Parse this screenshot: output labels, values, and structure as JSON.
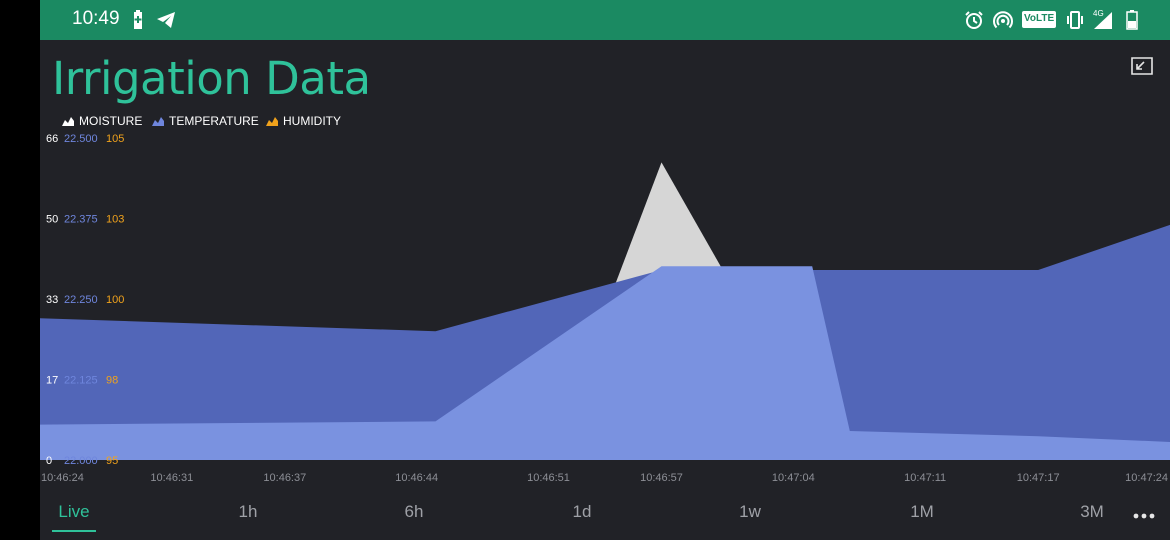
{
  "status_bar": {
    "time": "10:49",
    "volte_label": "VoLTE",
    "network_label": "4G"
  },
  "app": {
    "title": "Irrigation Data"
  },
  "legend": [
    {
      "name": "MOISTURE",
      "color": "#ffffff"
    },
    {
      "name": "TEMPERATURE",
      "color": "#6f86dd"
    },
    {
      "name": "HUMIDITY",
      "color": "#f0a21c"
    }
  ],
  "range_tabs": [
    {
      "label": "Live",
      "active": true
    },
    {
      "label": "1h",
      "active": false
    },
    {
      "label": "6h",
      "active": false
    },
    {
      "label": "1d",
      "active": false
    },
    {
      "label": "1w",
      "active": false
    },
    {
      "label": "1M",
      "active": false
    },
    {
      "label": "3M",
      "active": false
    }
  ],
  "chart_data": {
    "type": "area",
    "x": [
      "10:46:24",
      "10:46:31",
      "10:46:37",
      "10:46:44",
      "10:46:51",
      "10:46:57",
      "10:47:04",
      "10:47:11",
      "10:47:17",
      "10:47:24"
    ],
    "x_ticks": [
      "10:46:24",
      "10:46:31",
      "10:46:37",
      "10:46:44",
      "10:46:51",
      "10:46:57",
      "10:47:04",
      "10:47:11",
      "10:47:17",
      "10:47:24"
    ],
    "axes": [
      {
        "name": "MOISTURE",
        "color": "#ffffff",
        "ticks": [
          "66",
          "50",
          "33",
          "17",
          "0"
        ],
        "range": [
          0,
          66
        ]
      },
      {
        "name": "TEMPERATURE",
        "color": "#6f86dd",
        "ticks": [
          "22.500",
          "22.375",
          "22.250",
          "22.125",
          "22.000"
        ],
        "range": [
          22.0,
          22.5
        ]
      },
      {
        "name": "HUMIDITY",
        "color": "#f0a21c",
        "ticks": [
          "105",
          "103",
          "100",
          "98",
          "95"
        ],
        "range": [
          95,
          105
        ]
      }
    ],
    "series": [
      {
        "name": "MOISTURE",
        "color": "#d6d6d6",
        "points": [
          [
            "10:46:51",
            0
          ],
          [
            "10:46:57",
            61
          ],
          [
            "10:47:06",
            0
          ]
        ]
      },
      {
        "name": "HUMIDITY",
        "color": "#5266b8",
        "points": [
          [
            "10:46:24",
            99.4
          ],
          [
            "10:46:45",
            99.0
          ],
          [
            "10:46:57",
            100.9
          ],
          [
            "10:47:17",
            100.9
          ],
          [
            "10:47:24",
            102.3
          ]
        ]
      },
      {
        "name": "TEMPERATURE",
        "color": "#7a92e0",
        "points": [
          [
            "10:46:24",
            22.055
          ],
          [
            "10:46:45",
            22.06
          ],
          [
            "10:46:57",
            22.301
          ],
          [
            "10:47:05",
            22.301
          ],
          [
            "10:47:07",
            22.045
          ],
          [
            "10:47:17",
            22.037
          ],
          [
            "10:47:24",
            22.028
          ]
        ]
      }
    ],
    "legend_position": "top-left",
    "grid": false
  }
}
